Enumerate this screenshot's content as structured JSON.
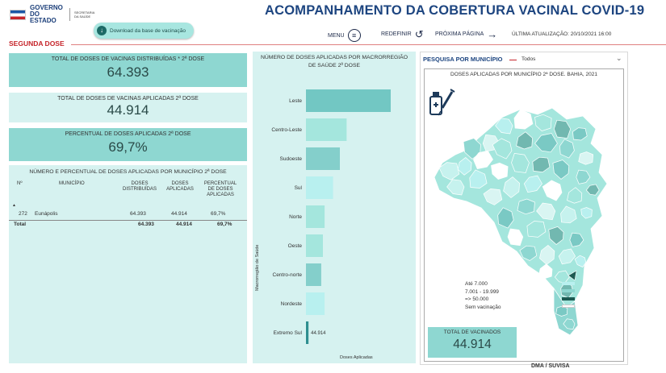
{
  "header": {
    "logo_main": "GOVERNO DO ESTADO",
    "logo_sub": "SECRETARIA DA SAÚDE",
    "title": "ACOMPANHAMENTO DA COBERTURA VACINAL COVID-19",
    "download_label": "Download da base de vacinação",
    "menu_label": "MENU",
    "reset_label": "REDEFINIR",
    "next_label": "PRÓXIMA PÁGINA",
    "updated": "ÚLTIMA ATUALIZAÇÃO: 20/10/2021 16:00",
    "section": "SEGUNDA DOSE"
  },
  "kpis": {
    "distributed_title": "TOTAL DE DOSES DE VACINAS DISTRIBUÍDAS * 2ª DOSE",
    "distributed_value": "64.393",
    "applied_title": "TOTAL DE DOSES DE VACINAS APLICADAS 2ª DOSE",
    "applied_value": "44.914",
    "percent_title": "PERCENTUAL DE DOSES APLICADAS 2ª DOSE",
    "percent_value": "69,7%"
  },
  "table": {
    "title": "NÚMERO E PERCENTUAL DE DOSES APLICADAS POR MUNICÍPIO 2ª DOSE",
    "col_n": "Nº",
    "col_municipio": "MUNICÍPIO",
    "col_distrib_1": "DOSES",
    "col_distrib_2": "DISTRIBUÍDAS",
    "col_aplic_1": "DOSES",
    "col_aplic_2": "APLICADAS",
    "col_pct_1": "PERCENTUAL",
    "col_pct_2": "DE DOSES",
    "col_pct_3": "APLICADAS",
    "row": {
      "n": "272",
      "municipio": "Eunápolis",
      "distribuidas": "64.393",
      "aplicadas": "44.914",
      "percentual": "69,7%"
    },
    "total": {
      "label": "Total",
      "distribuidas": "64.393",
      "aplicadas": "44.914",
      "percentual": "69,7%"
    }
  },
  "chart_data": {
    "type": "bar",
    "orientation": "horizontal",
    "title": "NÚMERO DE DOSES APLICADAS POR MACRORREGIÃO DE SAÚDE 2ª DOSE",
    "xlabel": "Doses Aplicadas",
    "ylabel": "Macrorregião de Saúde",
    "categories": [
      "Leste",
      "Centro-Leste",
      "Sudoeste",
      "Sul",
      "Norte",
      "Oeste",
      "Centro-norte",
      "Nordeste",
      "Extremo Sul"
    ],
    "relative_values": [
      1.0,
      0.48,
      0.4,
      0.32,
      0.22,
      0.2,
      0.18,
      0.22,
      0.03
    ],
    "data_labels": [
      "",
      "",
      "",
      "",
      "",
      "",
      "",
      "",
      "44.914"
    ],
    "colors": [
      "#72c7c3",
      "#a4e6dd",
      "#84cfcb",
      "#b8f0ef",
      "#a4e6dd",
      "#a4e6dd",
      "#84cfcb",
      "#b8f0ef",
      "#2f8f90"
    ],
    "grid": false,
    "legend": "none"
  },
  "map": {
    "search_label": "PESQUISA POR MUNICÍPIO",
    "search_value": "Todos",
    "title": "DOSES APLICADAS POR MUNICÍPIO 2ª DOSE. BAHIA, 2021",
    "legend": [
      {
        "label": "Até 7.000",
        "color": "#b8f0ef"
      },
      {
        "label": "7.001 - 19.999",
        "color": "#8ed7d1"
      },
      {
        "label": "=> 50.000",
        "color": "#1d5a52"
      },
      {
        "label": "Sem vacinação",
        "color": "#ffffff"
      }
    ],
    "total_title": "TOTAL DE VACINADOS",
    "total_value": "44.914"
  },
  "footer": "DMA / SUVISA"
}
